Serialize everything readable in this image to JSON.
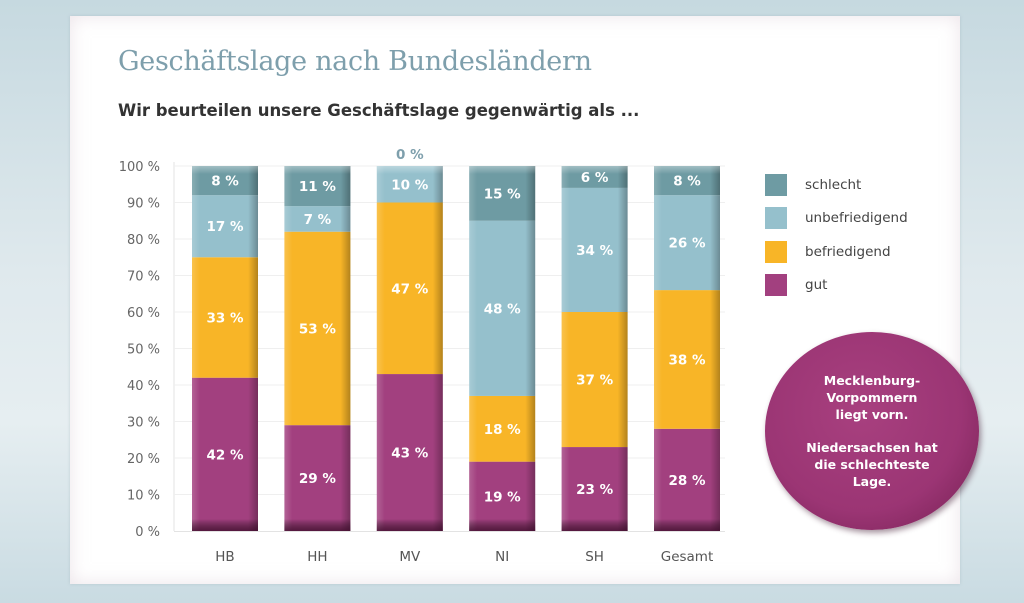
{
  "title": "Geschäftslage nach Bundesländern",
  "subtitle": "Wir beurteilen unsere Geschäftslage gegenwärtig als ...",
  "legend": [
    {
      "label": "schlecht",
      "color": "#6e9ba3"
    },
    {
      "label": "unbefriedigend",
      "color": "#95c0cc"
    },
    {
      "label": "befriedigend",
      "color": "#f8b527"
    },
    {
      "label": "gut",
      "color": "#a2407f"
    }
  ],
  "callout": {
    "line1": "Mecklenburg-\nVorpommern\nliegt vorn.",
    "line2": "Niedersachsen hat\ndie schlechteste\nLage."
  },
  "chart_data": {
    "type": "bar",
    "stacked": true,
    "title": "Geschäftslage nach Bundesländern",
    "subtitle": "Wir beurteilen unsere Geschäftslage gegenwärtig als ...",
    "xlabel": "",
    "ylabel": "",
    "ylim": [
      0,
      100
    ],
    "yticks": [
      "0 %",
      "10 %",
      "20 %",
      "30 %",
      "40 %",
      "50 %",
      "60 %",
      "70 %",
      "80 %",
      "90 %",
      "100 %"
    ],
    "grid": true,
    "legend_position": "right",
    "categories": [
      "HB",
      "HH",
      "MV",
      "NI",
      "SH",
      "Gesamt"
    ],
    "series": [
      {
        "name": "gut",
        "color": "#a2407f",
        "values": [
          42,
          29,
          43,
          19,
          23,
          28
        ]
      },
      {
        "name": "befriedigend",
        "color": "#f8b527",
        "values": [
          33,
          53,
          47,
          18,
          37,
          38
        ]
      },
      {
        "name": "unbefriedigend",
        "color": "#95c0cc",
        "values": [
          17,
          7,
          10,
          48,
          34,
          26
        ]
      },
      {
        "name": "schlecht",
        "color": "#6e9ba3",
        "values": [
          8,
          11,
          0,
          15,
          6,
          8
        ]
      }
    ]
  }
}
